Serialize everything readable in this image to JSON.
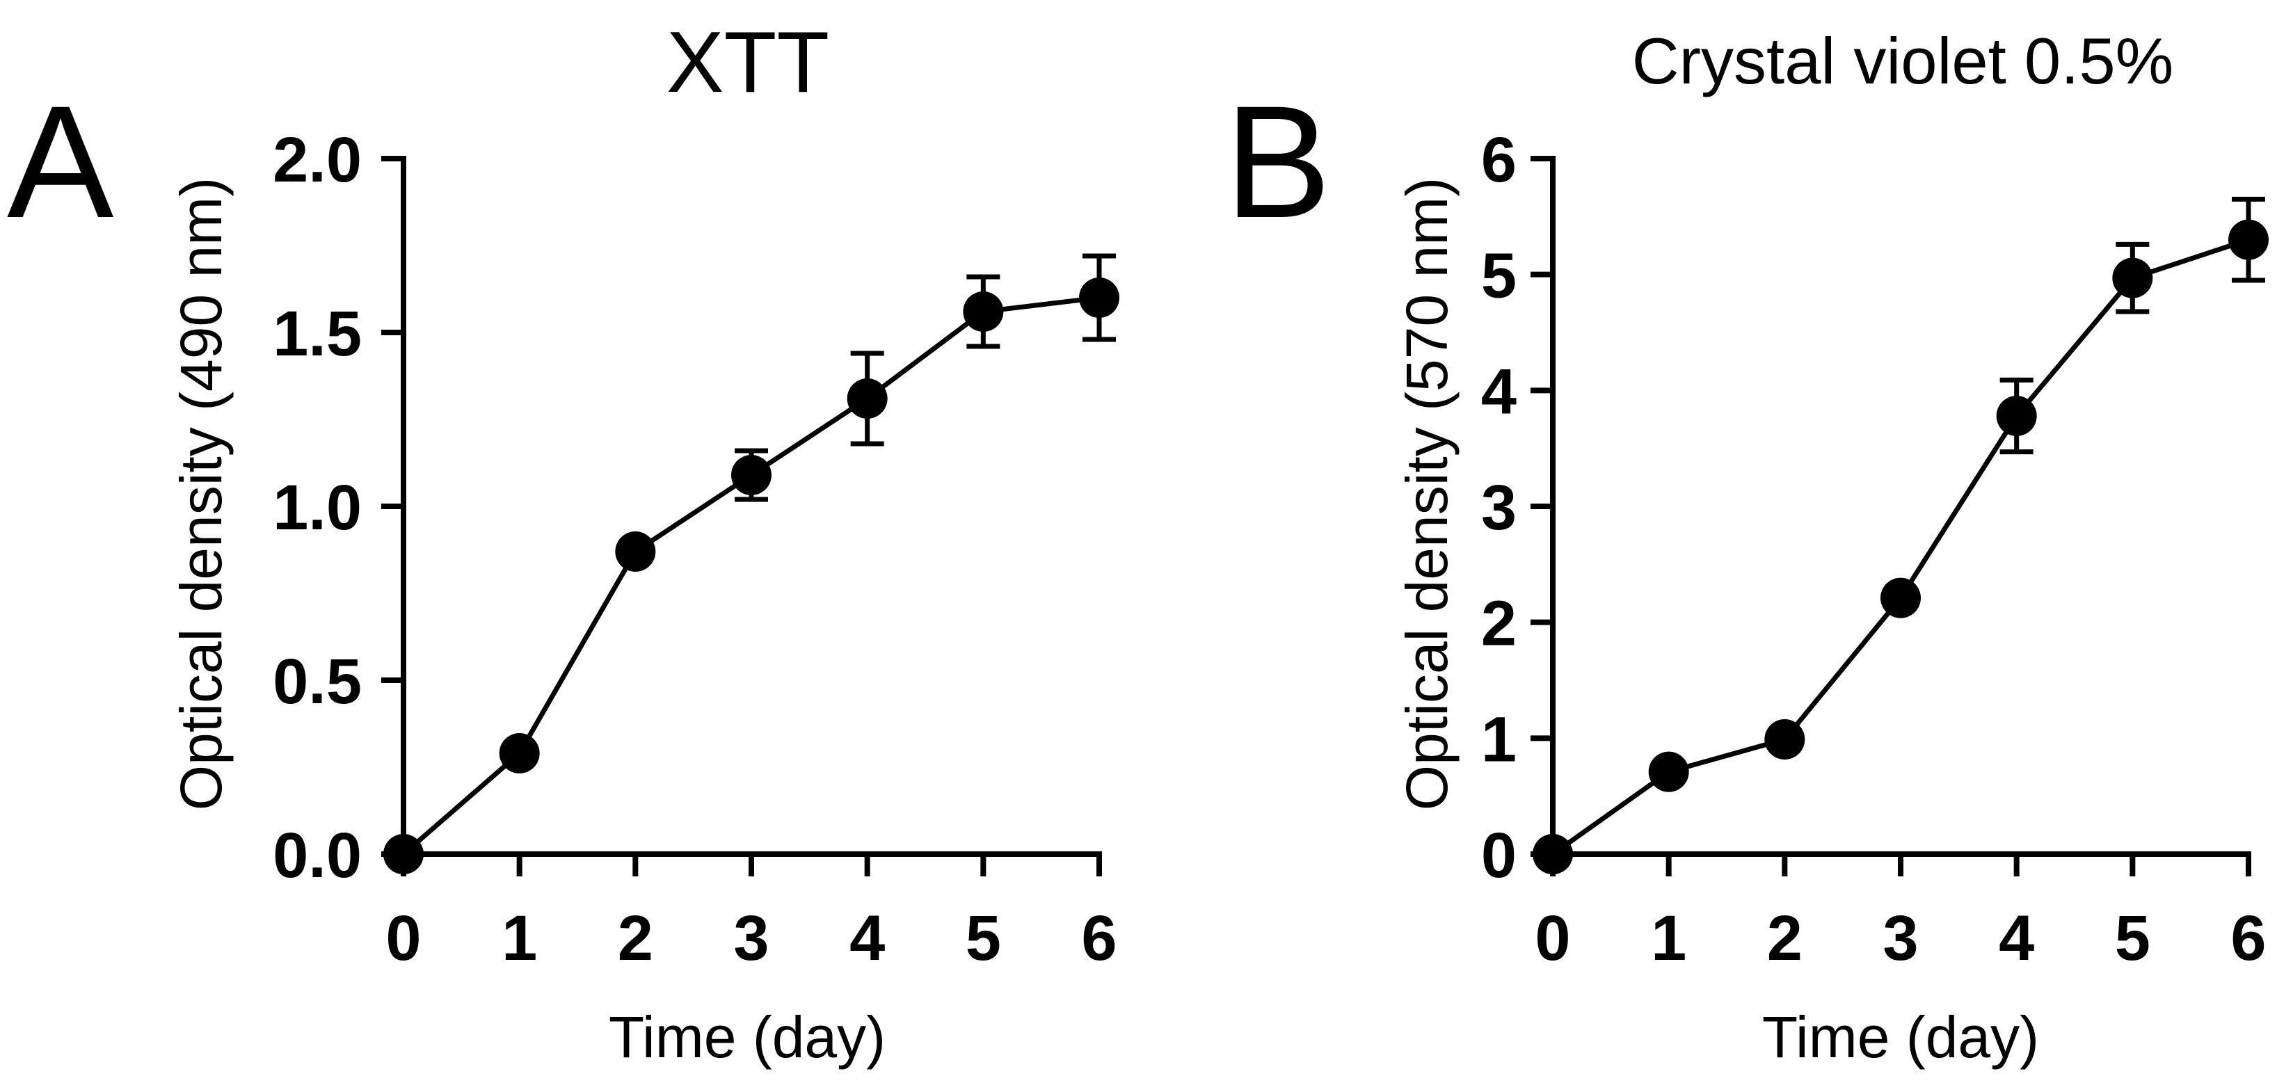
{
  "chart_data": [
    {
      "type": "line",
      "panel_label": "A",
      "title": "XTT",
      "xlabel": "Time (day)",
      "ylabel": "Optical density (490 nm)",
      "x": [
        0,
        1,
        2,
        3,
        4,
        5,
        6
      ],
      "xticks": [
        "0",
        "1",
        "2",
        "3",
        "4",
        "5",
        "6"
      ],
      "xlim": [
        0,
        6
      ],
      "ylim": [
        0,
        2.0
      ],
      "yticks": [
        "0.0",
        "0.5",
        "1.0",
        "1.5",
        "2.0"
      ],
      "ytick_values": [
        0,
        0.5,
        1.0,
        1.5,
        2.0
      ],
      "series": [
        {
          "name": "XTT",
          "values": [
            0.0,
            0.29,
            0.87,
            1.09,
            1.31,
            1.56,
            1.6
          ],
          "error": [
            0,
            0,
            0,
            0.07,
            0.13,
            0.1,
            0.12
          ]
        }
      ]
    },
    {
      "type": "line",
      "panel_label": "B",
      "title": "Crystal violet 0.5%",
      "xlabel": "Time (day)",
      "ylabel": "Optical density (570 nm)",
      "x": [
        0,
        1,
        2,
        3,
        4,
        5,
        6
      ],
      "xticks": [
        "0",
        "1",
        "2",
        "3",
        "4",
        "5",
        "6"
      ],
      "xlim": [
        0,
        6
      ],
      "ylim": [
        0,
        6
      ],
      "yticks": [
        "0",
        "1",
        "2",
        "3",
        "4",
        "5",
        "6"
      ],
      "ytick_values": [
        0,
        1,
        2,
        3,
        4,
        5,
        6
      ],
      "series": [
        {
          "name": "Crystal violet 0.5%",
          "values": [
            0.0,
            0.71,
            0.99,
            2.21,
            3.78,
            4.97,
            5.3
          ],
          "error": [
            0,
            0,
            0,
            0,
            0.31,
            0.29,
            0.35
          ]
        }
      ]
    }
  ]
}
